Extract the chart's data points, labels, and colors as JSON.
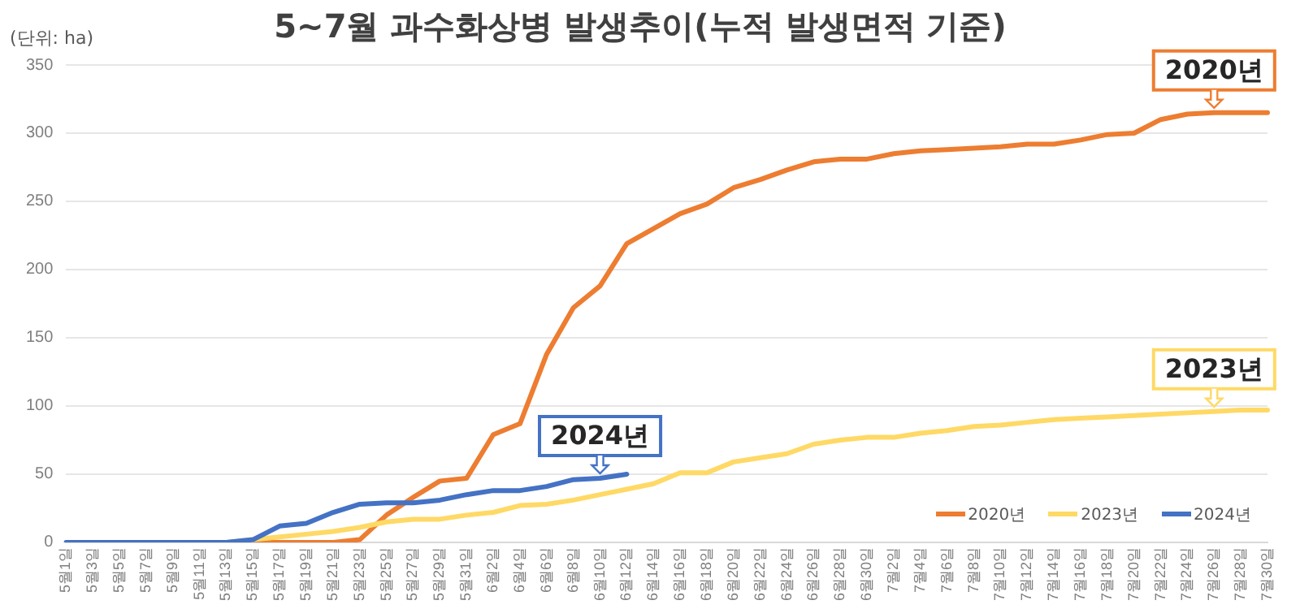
{
  "chart_data": {
    "type": "line",
    "title": "5~7월 과수화상병 발생추이(누적 발생면적 기준)",
    "ylabel": "(단위: ha)",
    "categories": [
      "5월1일",
      "5월3일",
      "5월5일",
      "5월7일",
      "5월9일",
      "5월11일",
      "5월13일",
      "5월15일",
      "5월17일",
      "5월19일",
      "5월21일",
      "5월23일",
      "5월25일",
      "5월27일",
      "5월29일",
      "5월31일",
      "6월2일",
      "6월4일",
      "6월6일",
      "6월8일",
      "6월10일",
      "6월12일",
      "6월14일",
      "6월16일",
      "6월18일",
      "6월20일",
      "6월22일",
      "6월24일",
      "6월26일",
      "6월28일",
      "6월30일",
      "7월2일",
      "7월4일",
      "7월6일",
      "7월8일",
      "7월10일",
      "7월12일",
      "7월14일",
      "7월16일",
      "7월18일",
      "7월20일",
      "7월22일",
      "7월24일",
      "7월26일",
      "7월28일",
      "7월30일"
    ],
    "series": [
      {
        "name": "2020년",
        "color": "#ed7d31",
        "values": [
          null,
          null,
          null,
          null,
          null,
          null,
          0,
          0,
          0,
          0,
          0,
          2,
          20,
          33,
          45,
          47,
          79,
          87,
          138,
          172,
          188,
          219,
          230,
          241,
          248,
          260,
          266,
          273,
          279,
          281,
          281,
          285,
          287,
          288,
          289,
          290,
          292,
          292,
          295,
          299,
          300,
          310,
          314,
          315,
          315,
          315
        ]
      },
      {
        "name": "2023년",
        "color": "#ffd966",
        "values": [
          null,
          null,
          null,
          null,
          null,
          null,
          0,
          2,
          4,
          6,
          8,
          11,
          15,
          17,
          17,
          20,
          22,
          27,
          28,
          31,
          35,
          39,
          43,
          51,
          51,
          59,
          62,
          65,
          72,
          75,
          77,
          77,
          80,
          82,
          85,
          86,
          88,
          90,
          91,
          92,
          93,
          94,
          95,
          96,
          97,
          97
        ]
      },
      {
        "name": "2024년",
        "color": "#4472c4",
        "values": [
          0,
          0,
          0,
          0,
          0,
          0,
          0,
          2,
          12,
          14,
          22,
          28,
          29,
          29,
          31,
          35,
          38,
          38,
          41,
          46,
          47,
          50,
          null,
          null,
          null,
          null,
          null,
          null,
          null,
          null,
          null,
          null,
          null,
          null,
          null,
          null,
          null,
          null,
          null,
          null,
          null,
          null,
          null,
          null,
          null,
          null
        ]
      }
    ],
    "ylim": [
      0,
      350
    ],
    "yticks": [
      0,
      50,
      100,
      150,
      200,
      250,
      300,
      350
    ],
    "grid": "y",
    "legend": "bottom right",
    "marker": "none",
    "line_style": "solid",
    "annotations": [
      {
        "text": "2020년",
        "x": "7월26일",
        "y": 315
      },
      {
        "text": "2023년",
        "x": "7월26일",
        "y": 96
      },
      {
        "text": "2024년",
        "x": "6월10일",
        "y": 47
      }
    ]
  }
}
